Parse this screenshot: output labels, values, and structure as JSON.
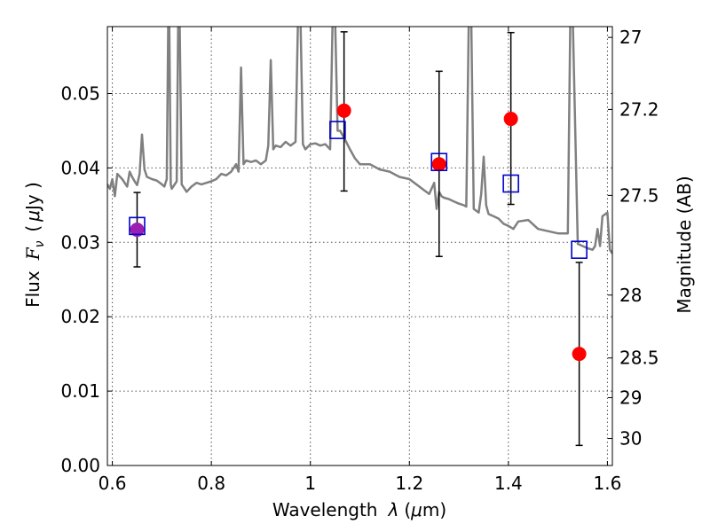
{
  "chart_data": {
    "type": "scatter",
    "xlabel": "Wavelength",
    "xlabel_symbol": "λ",
    "xlabel_unit_open": "(",
    "xlabel_unit_mu": "μ",
    "xlabel_unit_rest": "m)",
    "ylabel": "Flux",
    "ylabel_symbol": "F",
    "ylabel_subscript": "ν",
    "ylabel_unit_open": "(",
    "ylabel_unit_mu": "μ",
    "ylabel_unit_rest": "Jy )",
    "y2label": "Magnitude (AB)",
    "xlim": [
      0.59,
      1.61
    ],
    "ylim": [
      0.0,
      0.059
    ],
    "grid": true,
    "x_ticks": [
      {
        "value": 0.6,
        "label": "0.6"
      },
      {
        "value": 0.8,
        "label": "0.8"
      },
      {
        "value": 1.0,
        "label": "1"
      },
      {
        "value": 1.2,
        "label": "1.2"
      },
      {
        "value": 1.4,
        "label": "1.4"
      },
      {
        "value": 1.6,
        "label": "1.6"
      }
    ],
    "y_ticks": [
      {
        "value": 0.0,
        "label": "0.00"
      },
      {
        "value": 0.01,
        "label": "0.01"
      },
      {
        "value": 0.02,
        "label": "0.02"
      },
      {
        "value": 0.03,
        "label": "0.03"
      },
      {
        "value": 0.04,
        "label": "0.04"
      },
      {
        "value": 0.05,
        "label": "0.05"
      }
    ],
    "y2_ticks": [
      {
        "value": 27,
        "label": "27"
      },
      {
        "value": 27.2,
        "label": "27.2"
      },
      {
        "value": 27.5,
        "label": "27.5"
      },
      {
        "value": 28,
        "label": "28"
      },
      {
        "value": 28.5,
        "label": "28.5"
      },
      {
        "value": 29,
        "label": "29"
      },
      {
        "value": 30,
        "label": "30"
      }
    ],
    "observed": {
      "color": "#ff0000",
      "first_point_color": "#9b1fb0",
      "points": [
        {
          "x": 0.65,
          "y": 0.0317,
          "ylo": 0.0267,
          "yhi": 0.0367
        },
        {
          "x": 1.068,
          "y": 0.0477,
          "ylo": 0.0369,
          "yhi": 0.0583
        },
        {
          "x": 1.26,
          "y": 0.0405,
          "ylo": 0.0281,
          "yhi": 0.053
        },
        {
          "x": 1.405,
          "y": 0.0466,
          "ylo": 0.0351,
          "yhi": 0.0582
        },
        {
          "x": 1.543,
          "y": 0.015,
          "ylo": 0.0027,
          "yhi": 0.0273
        }
      ]
    },
    "model_photometry": {
      "color": "#0000cc",
      "points": [
        {
          "x": 0.65,
          "y": 0.0322
        },
        {
          "x": 1.055,
          "y": 0.0451
        },
        {
          "x": 1.26,
          "y": 0.0408
        },
        {
          "x": 1.405,
          "y": 0.0379
        },
        {
          "x": 1.543,
          "y": 0.029
        }
      ]
    },
    "model_spectrum": {
      "color": "#808080",
      "x": [
        0.59,
        0.595,
        0.6,
        0.605,
        0.61,
        0.62,
        0.63,
        0.635,
        0.64,
        0.645,
        0.65,
        0.655,
        0.66,
        0.665,
        0.67,
        0.68,
        0.69,
        0.7,
        0.705,
        0.71,
        0.713,
        0.715,
        0.718,
        0.72,
        0.73,
        0.733,
        0.736,
        0.74,
        0.75,
        0.76,
        0.77,
        0.78,
        0.79,
        0.8,
        0.81,
        0.82,
        0.83,
        0.84,
        0.85,
        0.855,
        0.86,
        0.865,
        0.87,
        0.88,
        0.89,
        0.9,
        0.91,
        0.915,
        0.92,
        0.925,
        0.93,
        0.94,
        0.95,
        0.96,
        0.97,
        0.975,
        0.98,
        0.985,
        0.99,
        1.0,
        1.01,
        1.02,
        1.03,
        1.04,
        1.045,
        1.05,
        1.055,
        1.06,
        1.07,
        1.08,
        1.09,
        1.1,
        1.12,
        1.14,
        1.16,
        1.18,
        1.2,
        1.22,
        1.23,
        1.24,
        1.25,
        1.255,
        1.26,
        1.265,
        1.27,
        1.28,
        1.29,
        1.3,
        1.31,
        1.315,
        1.32,
        1.325,
        1.33,
        1.34,
        1.345,
        1.35,
        1.355,
        1.36,
        1.37,
        1.38,
        1.39,
        1.4,
        1.41,
        1.42,
        1.44,
        1.46,
        1.48,
        1.5,
        1.51,
        1.52,
        1.525,
        1.53,
        1.54,
        1.55,
        1.56,
        1.57,
        1.575,
        1.58,
        1.585,
        1.59,
        1.6,
        1.605,
        1.61
      ],
      "y": [
        0.0378,
        0.0372,
        0.0385,
        0.0362,
        0.0392,
        0.0385,
        0.0375,
        0.0395,
        0.0388,
        0.0382,
        0.0377,
        0.0392,
        0.0445,
        0.0398,
        0.0388,
        0.0385,
        0.0383,
        0.0378,
        0.0375,
        0.0385,
        0.06,
        0.06,
        0.0378,
        0.0372,
        0.0382,
        0.06,
        0.06,
        0.0378,
        0.0368,
        0.0375,
        0.038,
        0.0378,
        0.038,
        0.0382,
        0.0385,
        0.0392,
        0.039,
        0.0395,
        0.0405,
        0.0395,
        0.0535,
        0.0405,
        0.041,
        0.0408,
        0.041,
        0.0405,
        0.041,
        0.043,
        0.0545,
        0.0425,
        0.043,
        0.0428,
        0.0435,
        0.043,
        0.0435,
        0.06,
        0.06,
        0.0432,
        0.0425,
        0.0432,
        0.0433,
        0.043,
        0.0432,
        0.0425,
        0.06,
        0.06,
        0.045,
        0.045,
        0.0438,
        0.0425,
        0.0413,
        0.0405,
        0.0405,
        0.0398,
        0.0395,
        0.0388,
        0.0385,
        0.0375,
        0.037,
        0.0365,
        0.038,
        0.0345,
        0.0368,
        0.0362,
        0.036,
        0.0358,
        0.0355,
        0.0352,
        0.035,
        0.0348,
        0.06,
        0.06,
        0.0345,
        0.034,
        0.0365,
        0.0415,
        0.035,
        0.0338,
        0.0335,
        0.0332,
        0.0325,
        0.0322,
        0.0318,
        0.0328,
        0.033,
        0.0318,
        0.0315,
        0.0312,
        0.0312,
        0.0312,
        0.06,
        0.06,
        0.0298,
        0.0295,
        0.0292,
        0.029,
        0.0295,
        0.0318,
        0.0295,
        0.0335,
        0.034,
        0.029,
        0.0285
      ]
    }
  }
}
